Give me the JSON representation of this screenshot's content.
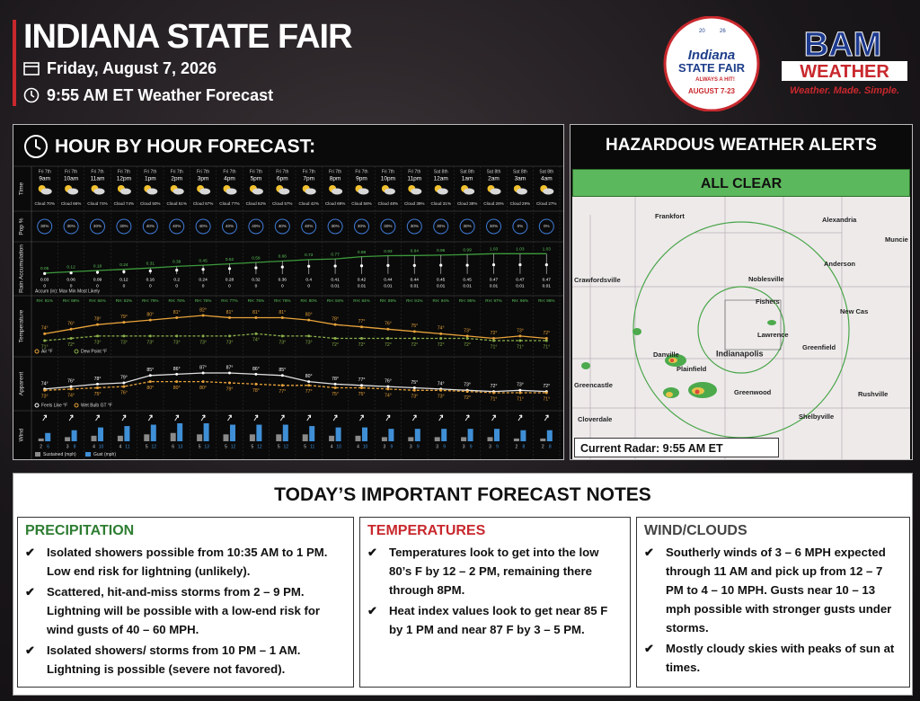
{
  "header": {
    "title": "INDIANA STATE FAIR",
    "date": "Friday, August 7, 2026",
    "time": "9:55 AM ET Weather Forecast"
  },
  "logos": {
    "fair": {
      "year_left": "20",
      "year_right": "26",
      "line1": "Indiana",
      "line2": "STATE FAIR",
      "tag": "ALWAYS A HIT!",
      "dates": "AUGUST 7-23"
    },
    "bam": {
      "name": "BAM",
      "sub": "WEATHER",
      "slogan": "Weather. Made. Simple."
    }
  },
  "hourly": {
    "title": "HOUR BY HOUR FORECAST:",
    "row_labels": {
      "time": "Time",
      "pop": "Pop %",
      "rain": "Rain Accumulation",
      "temperature": "Temperature",
      "apparent": "Apparent",
      "wind": "Wind"
    },
    "days": [
      "Fri 7th",
      "Fri 7th",
      "Fri 7th",
      "Fri 7th",
      "Fri 7th",
      "Fri 7th",
      "Fri 7th",
      "Fri 7th",
      "Fri 7th",
      "Fri 7th",
      "Fri 7th",
      "Fri 7th",
      "Fri 7th",
      "Fri 7th",
      "Fri 7th",
      "Sat 8th",
      "Sat 8th",
      "Sat 8th",
      "Sat 8th",
      "Sat 8th"
    ],
    "hours": [
      "9am",
      "10am",
      "11am",
      "12pm",
      "1pm",
      "2pm",
      "3pm",
      "4pm",
      "5pm",
      "6pm",
      "7pm",
      "8pm",
      "9pm",
      "10pm",
      "11pm",
      "12am",
      "1am",
      "2am",
      "3am",
      "4am"
    ],
    "cloud": [
      "Cloud 70%",
      "Cloud 66%",
      "Cloud 74%",
      "Cloud 74%",
      "Cloud 50%",
      "Cloud 51%",
      "Cloud 67%",
      "Cloud 77%",
      "Cloud 62%",
      "Cloud 57%",
      "Cloud 42%",
      "Cloud 69%",
      "Cloud 56%",
      "Cloud 48%",
      "Cloud 39%",
      "Cloud 31%",
      "Cloud 38%",
      "Cloud 26%",
      "Cloud 29%",
      "Cloud 27%"
    ],
    "pop": [
      "30%",
      "30%",
      "30%",
      "30%",
      "40%",
      "40%",
      "40%",
      "40%",
      "40%",
      "40%",
      "40%",
      "30%",
      "30%",
      "30%",
      "30%",
      "30%",
      "30%",
      "30%",
      "0%",
      "0%"
    ],
    "rain": {
      "max": [
        0.05,
        0.12,
        0.18,
        0.24,
        0.31,
        0.39,
        0.45,
        0.52,
        0.59,
        0.66,
        0.73,
        0.77,
        0.88,
        0.93,
        0.94,
        0.96,
        0.99,
        1.03,
        1.03,
        1.03
      ],
      "mid": [
        0.03,
        0.06,
        0.09,
        0.12,
        0.16,
        0.2,
        0.24,
        0.28,
        0.32,
        0.36,
        0.4,
        0.41,
        0.42,
        0.44,
        0.44,
        0.45,
        0.45,
        0.47,
        0.47,
        0.47
      ],
      "min": [
        0,
        0,
        0,
        0,
        0,
        0,
        0,
        0,
        0,
        0,
        0,
        0.01,
        0.01,
        0.01,
        0.01,
        0.01,
        0.01,
        0.01,
        0.01,
        0.01
      ],
      "legend": "Accum (in):  Max  Min  Most Likely"
    },
    "rh": [
      "RH: 91%",
      "RH: 88%",
      "RH: 84%",
      "RH: 82%",
      "RH: 79%",
      "RH: 76%",
      "RH: 76%",
      "RH: 77%",
      "RH: 76%",
      "RH: 76%",
      "RH: 80%",
      "RH: 84%",
      "RH: 84%",
      "RH: 89%",
      "RH: 91%",
      "RH: 94%",
      "RH: 95%",
      "RH: 97%",
      "RH: 96%",
      "RH: 96%"
    ],
    "temperature": {
      "air": {
        "values": [
          74,
          76,
          78,
          79,
          80,
          81,
          82,
          81,
          81,
          81,
          80,
          78,
          77,
          76,
          75,
          74,
          73,
          72,
          73,
          72
        ],
        "labels": [
          "74°",
          "76°",
          "78°",
          "79°",
          "80°",
          "81°",
          "82°",
          "81°",
          "81°",
          "81°",
          "80°",
          "78°",
          "77°",
          "76°",
          "75°",
          "74°",
          "73°",
          "72°",
          "73°",
          "72°"
        ]
      },
      "dew": {
        "values": [
          71,
          72,
          73,
          73,
          73,
          73,
          73,
          73,
          74,
          73,
          73,
          72,
          72,
          72,
          72,
          72,
          72,
          71,
          71,
          71
        ],
        "labels": [
          "71°",
          "72°",
          "73°",
          "73°",
          "73°",
          "73°",
          "73°",
          "73°",
          "74°",
          "73°",
          "73°",
          "72°",
          "72°",
          "72°",
          "72°",
          "72°",
          "72°",
          "71°",
          "71°",
          "71°"
        ]
      },
      "legend_air": "Air °F",
      "legend_dew": "Dew Point °F"
    },
    "apparent": {
      "feels": {
        "values": [
          74,
          76,
          78,
          79,
          85,
          86,
          87,
          87,
          86,
          85,
          80,
          78,
          77,
          76,
          75,
          74,
          73,
          72,
          73,
          72
        ],
        "labels": [
          "74°",
          "76°",
          "78°",
          "79°",
          "85°",
          "86°",
          "87°",
          "87°",
          "86°",
          "85°",
          "80°",
          "78°",
          "77°",
          "76°",
          "75°",
          "74°",
          "73°",
          "72°",
          "73°",
          "72°"
        ]
      },
      "wetbulb": {
        "values": [
          73,
          74,
          75,
          76,
          80,
          80,
          80,
          79,
          78,
          77,
          77,
          75,
          75,
          74,
          73,
          73,
          72,
          71,
          71,
          71
        ],
        "labels": [
          "73°",
          "74°",
          "75°",
          "76°",
          "80°",
          "80°",
          "80°",
          "79°",
          "78°",
          "77°",
          "77°",
          "75°",
          "75°",
          "74°",
          "73°",
          "73°",
          "72°",
          "71°",
          "71°",
          "71°"
        ]
      },
      "legend_feels": "Feels Like °F",
      "legend_wetbulb": "Wet Bulb GT °F"
    },
    "wind": {
      "sustained": [
        2,
        3,
        4,
        4,
        5,
        6,
        5,
        5,
        5,
        5,
        5,
        4,
        4,
        3,
        3,
        3,
        3,
        3,
        2,
        2
      ],
      "gust": [
        6,
        8,
        10,
        11,
        12,
        13,
        13,
        12,
        12,
        12,
        11,
        10,
        10,
        9,
        9,
        9,
        9,
        9,
        8,
        8
      ],
      "legend_sustained": "Sustained (mph)",
      "legend_gust": "Gust (mph)"
    }
  },
  "alerts": {
    "title": "HAZARDOUS WEATHER ALERTS",
    "status": "ALL CLEAR",
    "radar_caption": "Current Radar: 9:55 AM ET",
    "places": [
      "Frankfort",
      "Alexandria",
      "Muncie",
      "Crawfordsville",
      "Noblesville",
      "Anderson",
      "Fishers",
      "New Cas",
      "Lawrence",
      "Indianapolis",
      "Greenfield",
      "Danville",
      "Plainfield",
      "Greencastle",
      "Greenwood",
      "Rushville",
      "Cloverdale",
      "Shelbyville"
    ]
  },
  "notes": {
    "title": "TODAY’S IMPORTANT FORECAST NOTES",
    "sections": [
      {
        "heading": "PRECIPITATION",
        "items": [
          "Isolated showers possible from 10:35 AM to 1 PM. Low end risk for lightning (unlikely).",
          "Scattered, hit-and-miss storms from 2 – 9 PM. Lightning will be possible with a low-end risk for wind gusts of 40 – 60 MPH.",
          "Isolated showers/ storms from 10 PM – 1 AM. Lightning is possible (severe not favored)."
        ]
      },
      {
        "heading": "TEMPERATURES",
        "items": [
          "Temperatures look to get into the low 80’s F by 12 – 2 PM, remaining there through 8PM.",
          "Heat index values look to get near 85 F by 1 PM and near 87 F by 3 – 5 PM."
        ]
      },
      {
        "heading": "WIND/CLOUDS",
        "items": [
          "Southerly winds of 3 – 6 MPH expected through 11 AM and pick up from 12 – 7 PM to 4 – 10 MPH.  Gusts near 10 – 13 mph possible with stronger gusts under storms.",
          "Mostly cloudy skies with peaks of sun at times."
        ]
      }
    ]
  }
}
